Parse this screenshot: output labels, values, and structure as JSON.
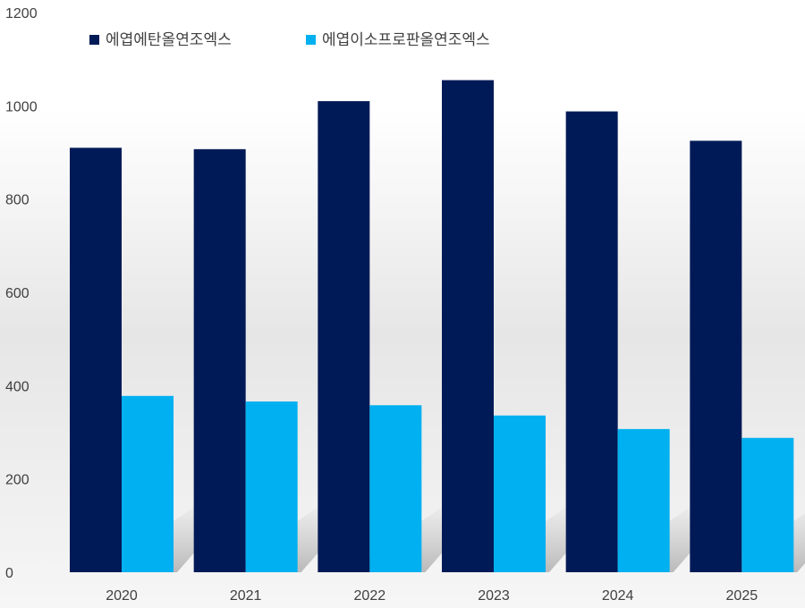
{
  "chart_data": {
    "type": "bar",
    "title": "",
    "xlabel": "",
    "ylabel": "",
    "categories": [
      "2020",
      "2021",
      "2022",
      "2023",
      "2024",
      "2025"
    ],
    "series": [
      {
        "name": "에엽에탄올연조엑스",
        "color": "#001a57",
        "values": [
          910,
          907,
          1010,
          1055,
          988,
          925
        ]
      },
      {
        "name": "에엽이소프로판올연조엑스",
        "color": "#00b0f0",
        "values": [
          378,
          366,
          358,
          336,
          307,
          288
        ]
      }
    ],
    "ylim": [
      0,
      1200
    ],
    "yticks": [
      "0",
      "200",
      "400",
      "600",
      "800",
      "1000",
      "1200"
    ],
    "grid": false,
    "legend": "top-left"
  }
}
